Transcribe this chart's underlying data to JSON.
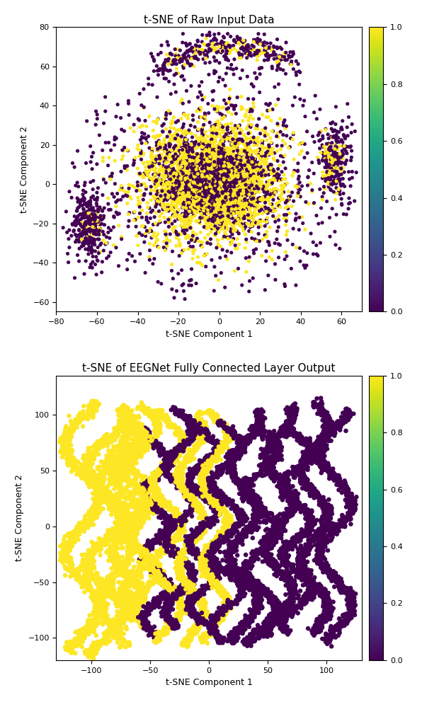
{
  "title1": "t-SNE of Raw Input Data",
  "title2": "t-SNE of EEGNet Fully Connected Layer Output",
  "xlabel": "t-SNE Component 1",
  "ylabel": "t-SNE Component 2",
  "colormap": "viridis",
  "cbar_ticks": [
    0.0,
    0.2,
    0.4,
    0.6,
    0.8,
    1.0
  ],
  "plot1_xlim": [
    -80,
    70
  ],
  "plot1_ylim": [
    -65,
    80
  ],
  "plot2_xlim": [
    -130,
    130
  ],
  "plot2_ylim": [
    -120,
    135
  ],
  "background_color": "white",
  "figsize": [
    6.2,
    9.92
  ],
  "dpi": 100
}
